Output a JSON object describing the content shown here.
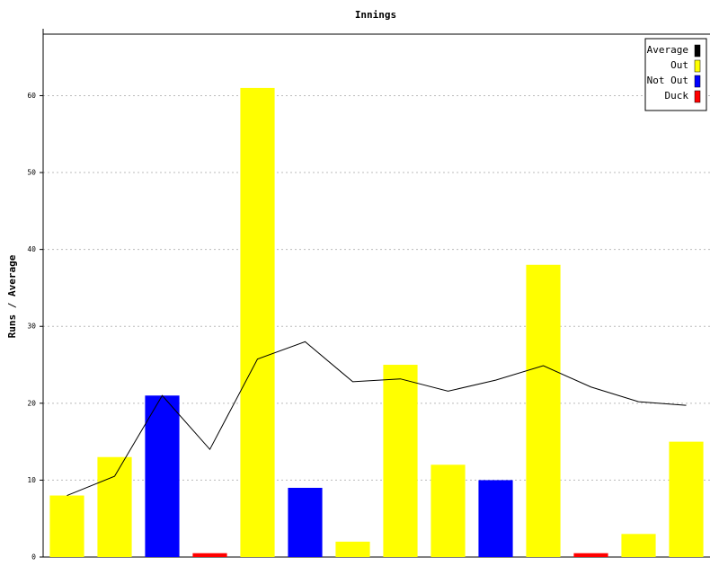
{
  "chart_data": {
    "type": "bar",
    "title": "Innings",
    "y_label": "Runs / Average",
    "categories": [
      null,
      null,
      null,
      null,
      null,
      null,
      null,
      null,
      null,
      null,
      null,
      null,
      null,
      null
    ],
    "series": [
      {
        "name": "Average",
        "color": "#000000",
        "type": "line",
        "values": [
          8,
          10.5,
          21,
          14,
          25.75,
          28,
          22.8,
          23.17,
          21.57,
          23,
          24.88,
          22.11,
          20.2,
          19.73
        ]
      },
      {
        "name": "Out",
        "color": "#ffff00",
        "type": "bar",
        "values": [
          8,
          13,
          null,
          null,
          61,
          null,
          2,
          25,
          12,
          null,
          38,
          null,
          3,
          15
        ]
      },
      {
        "name": "Not Out",
        "color": "#0000ff",
        "type": "bar",
        "values": [
          null,
          null,
          21,
          null,
          null,
          9,
          null,
          null,
          null,
          10,
          null,
          null,
          null,
          null
        ]
      },
      {
        "name": "Duck",
        "color": "#ff0000",
        "type": "bar",
        "values": [
          null,
          null,
          null,
          0.5,
          null,
          null,
          null,
          null,
          null,
          null,
          null,
          0.5,
          null,
          null
        ]
      }
    ],
    "ylim": [
      0,
      68
    ],
    "yticks": [
      0,
      10,
      20,
      30,
      40,
      50,
      60
    ],
    "grid": true,
    "legend": "top-right"
  }
}
